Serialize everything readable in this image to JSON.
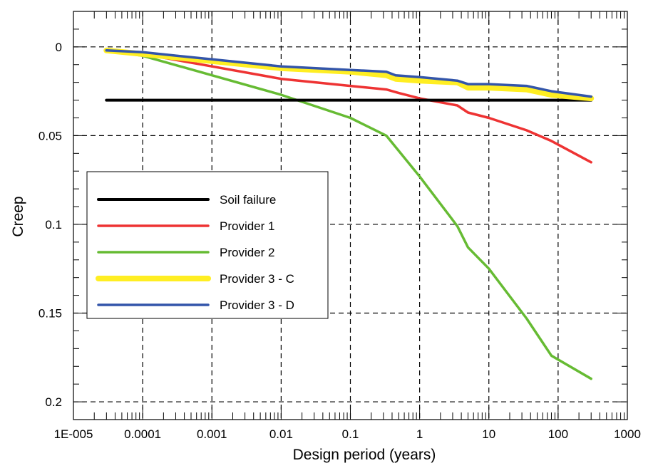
{
  "chart_data": {
    "type": "line",
    "title": "",
    "xlabel": "Design period (years)",
    "ylabel": "Creep",
    "x_scale": "log",
    "xlim": [
      1e-05,
      1000
    ],
    "ylim": [
      0.21,
      -0.02
    ],
    "y_inverted": true,
    "x_ticks": [
      1e-05,
      0.0001,
      0.001,
      0.01,
      0.1,
      1,
      10,
      100,
      1000
    ],
    "x_tick_labels": [
      "1E-005",
      "0.0001",
      "0.001",
      "0.01",
      "0.1",
      "1",
      "10",
      "100",
      "1000"
    ],
    "y_ticks": [
      0,
      0.05,
      0.1,
      0.15,
      0.2
    ],
    "y_tick_labels": [
      "0",
      "0.05",
      "0.1",
      "0.15",
      "0.2"
    ],
    "grid": true,
    "grid_style": "dashed",
    "legend_position": "left-middle",
    "series": [
      {
        "name": "Soil failure",
        "color": "#000000",
        "x": [
          3e-05,
          300
        ],
        "y": [
          0.03,
          0.03
        ]
      },
      {
        "name": "Provider 1",
        "color": "#ee3333",
        "x": [
          3e-05,
          0.0001,
          0.001,
          0.01,
          0.1,
          0.33,
          0.5,
          1,
          3.5,
          5,
          10,
          35,
          80,
          300
        ],
        "y": [
          0.002,
          0.004,
          0.011,
          0.018,
          0.022,
          0.024,
          0.026,
          0.029,
          0.033,
          0.037,
          0.04,
          0.047,
          0.053,
          0.065
        ]
      },
      {
        "name": "Provider 2",
        "color": "#66bb33",
        "x": [
          3e-05,
          0.0001,
          0.001,
          0.01,
          0.1,
          0.33,
          1,
          3.5,
          5,
          10,
          35,
          80,
          300
        ],
        "y": [
          0.002,
          0.005,
          0.016,
          0.027,
          0.04,
          0.05,
          0.073,
          0.101,
          0.113,
          0.125,
          0.153,
          0.174,
          0.187
        ]
      },
      {
        "name": "Provider 3 - C",
        "color": "#ffee22",
        "x": [
          3e-05,
          0.0001,
          0.001,
          0.01,
          0.1,
          0.33,
          0.45,
          1,
          3.5,
          5,
          10,
          35,
          80,
          300
        ],
        "y": [
          0.002,
          0.004,
          0.008,
          0.012,
          0.014,
          0.016,
          0.018,
          0.019,
          0.02,
          0.023,
          0.023,
          0.024,
          0.027,
          0.029
        ]
      },
      {
        "name": "Provider 3 - D",
        "color": "#3355aa",
        "x": [
          3e-05,
          0.0001,
          0.001,
          0.01,
          0.1,
          0.33,
          0.45,
          1,
          3.5,
          5,
          10,
          35,
          80,
          300
        ],
        "y": [
          0.002,
          0.003,
          0.007,
          0.011,
          0.013,
          0.014,
          0.016,
          0.017,
          0.019,
          0.021,
          0.021,
          0.022,
          0.025,
          0.028
        ]
      }
    ]
  }
}
